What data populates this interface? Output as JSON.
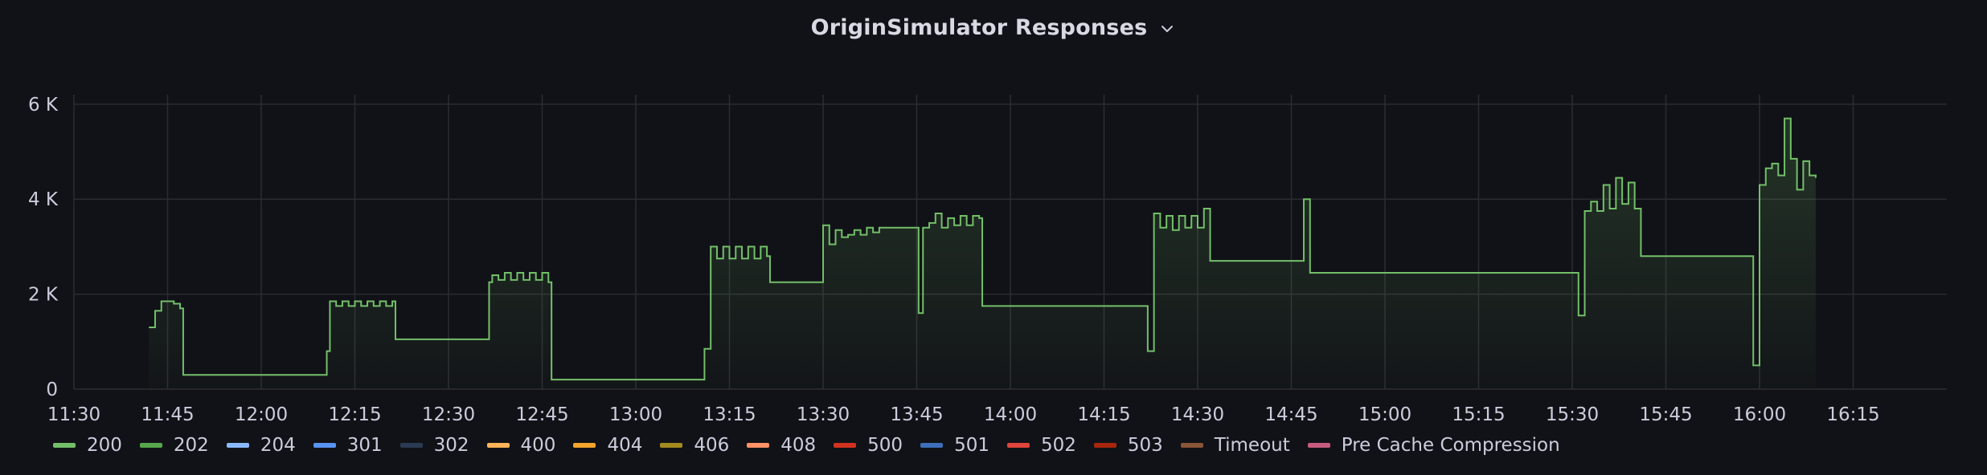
{
  "panel": {
    "title": "OriginSimulator Responses",
    "menu_icon": "chevron-down-icon"
  },
  "chart_data": {
    "type": "area",
    "title": "OriginSimulator Responses",
    "xlabel": "",
    "ylabel": "",
    "grid": true,
    "legend_position": "bottom",
    "x_range": [
      "11:30",
      "16:30"
    ],
    "ylim": [
      0,
      6200
    ],
    "y_ticks": [
      {
        "value": 0,
        "label": "0"
      },
      {
        "value": 2000,
        "label": "2 K"
      },
      {
        "value": 4000,
        "label": "4 K"
      },
      {
        "value": 6000,
        "label": "6 K"
      }
    ],
    "x_ticks": [
      "11:30",
      "11:45",
      "12:00",
      "12:15",
      "12:30",
      "12:45",
      "13:00",
      "13:15",
      "13:30",
      "13:45",
      "14:00",
      "14:15",
      "14:30",
      "14:45",
      "15:00",
      "15:15",
      "15:30",
      "15:45",
      "16:00",
      "16:15"
    ],
    "step": true,
    "series": [
      {
        "name": "200",
        "color": "#73bf69",
        "points": [
          [
            "11:42",
            1300
          ],
          [
            "11:43",
            1650
          ],
          [
            "11:44",
            1850
          ],
          [
            "11:46",
            1800
          ],
          [
            "11:47",
            1700
          ],
          [
            "11:47.5",
            300
          ],
          [
            "12:10",
            300
          ],
          [
            "12:10.5",
            800
          ],
          [
            "12:11",
            1850
          ],
          [
            "12:12",
            1750
          ],
          [
            "12:13",
            1850
          ],
          [
            "12:14",
            1750
          ],
          [
            "12:15",
            1850
          ],
          [
            "12:16",
            1750
          ],
          [
            "12:17",
            1850
          ],
          [
            "12:18",
            1750
          ],
          [
            "12:19",
            1850
          ],
          [
            "12:20",
            1750
          ],
          [
            "12:21",
            1850
          ],
          [
            "12:21.5",
            1050
          ],
          [
            "12:36.5",
            1050
          ],
          [
            "12:36.5",
            2250
          ],
          [
            "12:37",
            2400
          ],
          [
            "12:38",
            2300
          ],
          [
            "12:39",
            2450
          ],
          [
            "12:40",
            2300
          ],
          [
            "12:41",
            2450
          ],
          [
            "12:42",
            2300
          ],
          [
            "12:43",
            2450
          ],
          [
            "12:44",
            2300
          ],
          [
            "12:45",
            2450
          ],
          [
            "12:46",
            2250
          ],
          [
            "12:46.5",
            200
          ],
          [
            "13:11",
            200
          ],
          [
            "13:11",
            850
          ],
          [
            "13:12",
            3000
          ],
          [
            "13:13",
            2750
          ],
          [
            "13:14",
            3000
          ],
          [
            "13:15",
            2750
          ],
          [
            "13:16",
            3000
          ],
          [
            "13:17",
            2750
          ],
          [
            "13:18",
            3000
          ],
          [
            "13:19",
            2750
          ],
          [
            "13:20",
            3000
          ],
          [
            "13:21",
            2800
          ],
          [
            "13:21.5",
            2250
          ],
          [
            "13:30",
            2250
          ],
          [
            "13:30",
            3450
          ],
          [
            "13:31",
            3050
          ],
          [
            "13:32",
            3350
          ],
          [
            "13:33",
            3200
          ],
          [
            "13:34",
            3250
          ],
          [
            "13:35",
            3350
          ],
          [
            "13:36",
            3250
          ],
          [
            "13:37",
            3400
          ],
          [
            "13:38",
            3300
          ],
          [
            "13:39",
            3400
          ],
          [
            "13:45",
            3400
          ],
          [
            "13:45.3",
            1600
          ],
          [
            "13:46",
            3400
          ],
          [
            "13:47",
            3500
          ],
          [
            "13:48",
            3700
          ],
          [
            "13:49",
            3400
          ],
          [
            "13:50",
            3600
          ],
          [
            "13:51",
            3450
          ],
          [
            "13:52",
            3650
          ],
          [
            "13:53",
            3450
          ],
          [
            "13:54",
            3650
          ],
          [
            "13:55",
            3600
          ],
          [
            "13:55.5",
            1750
          ],
          [
            "14:22",
            1750
          ],
          [
            "14:22",
            800
          ],
          [
            "14:23",
            3700
          ],
          [
            "14:24",
            3400
          ],
          [
            "14:25",
            3650
          ],
          [
            "14:26",
            3350
          ],
          [
            "14:27",
            3650
          ],
          [
            "14:28",
            3400
          ],
          [
            "14:29",
            3650
          ],
          [
            "14:30",
            3400
          ],
          [
            "14:31",
            3800
          ],
          [
            "14:32",
            2700
          ],
          [
            "14:47",
            2700
          ],
          [
            "14:47",
            4000
          ],
          [
            "14:48",
            2450
          ],
          [
            "15:31",
            2450
          ],
          [
            "15:31",
            1550
          ],
          [
            "15:32",
            3750
          ],
          [
            "15:33",
            3950
          ],
          [
            "15:34",
            3750
          ],
          [
            "15:35",
            4300
          ],
          [
            "15:36",
            3800
          ],
          [
            "15:37",
            4450
          ],
          [
            "15:38",
            3900
          ],
          [
            "15:39",
            4350
          ],
          [
            "15:40",
            3800
          ],
          [
            "15:41",
            2800
          ],
          [
            "15:59",
            2800
          ],
          [
            "15:59",
            500
          ],
          [
            "16:00",
            4300
          ],
          [
            "16:01",
            4650
          ],
          [
            "16:02",
            4750
          ],
          [
            "16:03",
            4500
          ],
          [
            "16:04",
            5700
          ],
          [
            "16:05",
            4850
          ],
          [
            "16:06",
            4200
          ],
          [
            "16:07",
            4800
          ],
          [
            "16:08",
            4500
          ],
          [
            "16:09",
            4450
          ]
        ]
      },
      {
        "name": "202",
        "color": "#56a64b",
        "points": []
      },
      {
        "name": "204",
        "color": "#8ab8ff",
        "points": []
      },
      {
        "name": "301",
        "color": "#5794f2",
        "points": []
      },
      {
        "name": "302",
        "color": "#2a3a52",
        "points": []
      },
      {
        "name": "400",
        "color": "#ffb357",
        "points": []
      },
      {
        "name": "404",
        "color": "#f2a42b",
        "points": []
      },
      {
        "name": "406",
        "color": "#a48b1f",
        "points": []
      },
      {
        "name": "408",
        "color": "#ff9266",
        "points": []
      },
      {
        "name": "500",
        "color": "#d1321f",
        "points": []
      },
      {
        "name": "501",
        "color": "#3d6fba",
        "points": []
      },
      {
        "name": "502",
        "color": "#e0453c",
        "points": []
      },
      {
        "name": "503",
        "color": "#a8260e",
        "points": []
      },
      {
        "name": "Timeout",
        "color": "#8a5538",
        "points": []
      },
      {
        "name": "Pre Cache Compression",
        "color": "#c75b7e",
        "points": []
      }
    ]
  }
}
